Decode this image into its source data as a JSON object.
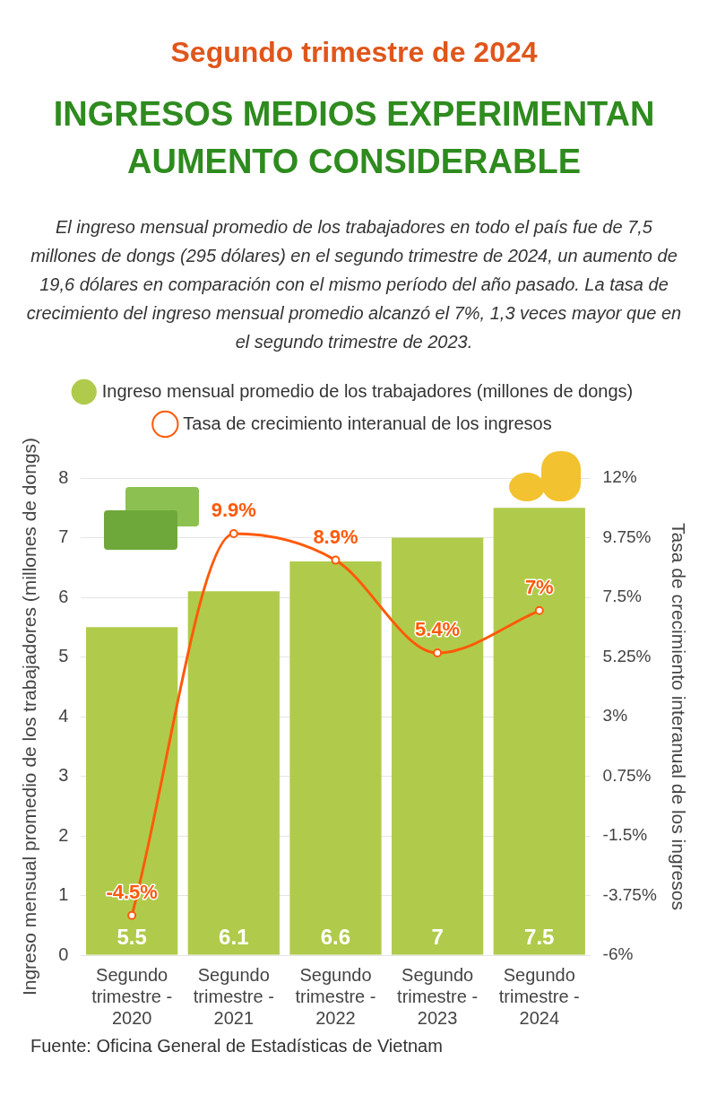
{
  "chart_data": {
    "type": "bar",
    "title": "INGRESOS MEDIOS EXPERIMENTAN AUMENTO CONSIDERABLE",
    "subtitle": "El ingreso mensual promedio de los trabajadores en todo el país fue de 7,5 millones de dongs (295 dólares) en el segundo trimestre de 2024, un aumento de 19,6 dólares en comparación con el mismo período del año pasado. La tasa de crecimiento del ingreso mensual promedio alcanzó el 7%, 1,3 veces mayor que en el segundo trimestre de 2023.",
    "annotations": [
      "Segundo trimestre de 2024",
      "Fuente: Oficina General de Estadísticas de Vietnam"
    ],
    "categories": [
      "Segundo trimestre - 2020",
      "Segundo trimestre - 2021",
      "Segundo trimestre - 2022",
      "Segundo trimestre - 2023",
      "Segundo trimestre - 2024"
    ],
    "series": [
      {
        "name": "Ingreso mensual promedio de los trabajadores (millones de dongs)",
        "color": "#b0cb4b",
        "values": [
          5.5,
          6.1,
          6.6,
          7,
          7.5
        ],
        "value_labels": [
          "5.5",
          "6.1",
          "6.6",
          "7",
          "7.5"
        ]
      },
      {
        "name": "Tasa de crecimiento interanual de los ingresos",
        "type": "line",
        "axis": "y2",
        "color": "#ff5a0a",
        "values": [
          -4.5,
          9.9,
          8.9,
          5.4,
          7
        ],
        "value_labels": [
          "-4.5%",
          "9.9%",
          "8.9%",
          "5.4%",
          "7%"
        ]
      }
    ],
    "ylabel": "Ingreso mensual promedio de los trabajadores (millones de dongs)",
    "y2label": "Tasa de crecimiento interanual de los ingresos",
    "ylim": [
      0,
      8
    ],
    "yticks": [
      0,
      1,
      2,
      3,
      4,
      5,
      6,
      7,
      8
    ],
    "y2lim": [
      -6,
      12
    ],
    "y2ticks": [
      {
        "value": -6,
        "label": "-6%"
      },
      {
        "value": -3.75,
        "label": "-3.75%"
      },
      {
        "value": -1.5,
        "label": "-1.5%"
      },
      {
        "value": 0.75,
        "label": "0.75%"
      },
      {
        "value": 3,
        "label": "3%"
      },
      {
        "value": 5.25,
        "label": "5.25%"
      },
      {
        "value": 7.5,
        "label": "7.5%"
      },
      {
        "value": 9.75,
        "label": "9.75%"
      },
      {
        "value": 12,
        "label": "12%"
      }
    ],
    "grid": "y",
    "legend": "top",
    "marker": "circle"
  }
}
